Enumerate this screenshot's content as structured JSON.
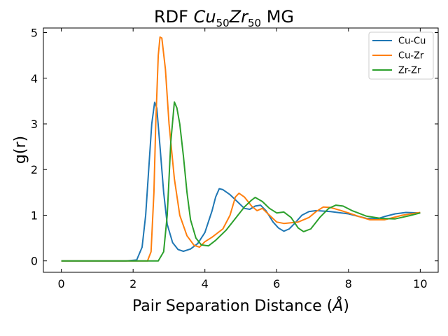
{
  "chart_data": {
    "type": "line",
    "title": {
      "prefix": "RDF ",
      "el1": "Cu",
      "sub1": "50",
      "el2": "Zr",
      "sub2": "50",
      "suffix": " MG"
    },
    "xlabel": {
      "text": "Pair Separation Distance (",
      "unit": "Å",
      "close": ")"
    },
    "ylabel": "g(r)",
    "xlim": [
      -0.5,
      10.5
    ],
    "ylim": [
      -0.25,
      5.1
    ],
    "xticks": [
      0,
      2,
      4,
      6,
      8,
      10
    ],
    "yticks": [
      0,
      1,
      2,
      3,
      4,
      5
    ],
    "grid": false,
    "legend_position": "top-right",
    "series": [
      {
        "name": "Cu-Cu",
        "color": "#1f77b4",
        "points": [
          [
            0,
            0
          ],
          [
            1.8,
            0
          ],
          [
            2.1,
            0.02
          ],
          [
            2.25,
            0.3
          ],
          [
            2.35,
            1.0
          ],
          [
            2.45,
            2.2
          ],
          [
            2.52,
            3.0
          ],
          [
            2.6,
            3.47
          ],
          [
            2.66,
            3.35
          ],
          [
            2.75,
            2.5
          ],
          [
            2.85,
            1.5
          ],
          [
            2.95,
            0.8
          ],
          [
            3.1,
            0.4
          ],
          [
            3.25,
            0.25
          ],
          [
            3.4,
            0.21
          ],
          [
            3.6,
            0.26
          ],
          [
            3.8,
            0.38
          ],
          [
            4.0,
            0.62
          ],
          [
            4.2,
            1.1
          ],
          [
            4.3,
            1.4
          ],
          [
            4.4,
            1.58
          ],
          [
            4.5,
            1.56
          ],
          [
            4.7,
            1.45
          ],
          [
            4.9,
            1.3
          ],
          [
            5.1,
            1.15
          ],
          [
            5.25,
            1.13
          ],
          [
            5.4,
            1.2
          ],
          [
            5.55,
            1.22
          ],
          [
            5.7,
            1.1
          ],
          [
            5.9,
            0.85
          ],
          [
            6.05,
            0.72
          ],
          [
            6.2,
            0.65
          ],
          [
            6.35,
            0.7
          ],
          [
            6.5,
            0.82
          ],
          [
            6.7,
            1.0
          ],
          [
            6.9,
            1.08
          ],
          [
            7.1,
            1.1
          ],
          [
            7.5,
            1.08
          ],
          [
            8.0,
            1.03
          ],
          [
            8.5,
            0.93
          ],
          [
            8.8,
            0.92
          ],
          [
            9.0,
            0.97
          ],
          [
            9.3,
            1.03
          ],
          [
            9.6,
            1.06
          ],
          [
            10,
            1.05
          ]
        ]
      },
      {
        "name": "Cu-Zr",
        "color": "#ff7f0e",
        "points": [
          [
            0,
            0
          ],
          [
            2.4,
            0
          ],
          [
            2.5,
            0.2
          ],
          [
            2.58,
            1.5
          ],
          [
            2.63,
            3.0
          ],
          [
            2.7,
            4.5
          ],
          [
            2.75,
            4.9
          ],
          [
            2.8,
            4.88
          ],
          [
            2.9,
            4.2
          ],
          [
            3.0,
            3.0
          ],
          [
            3.15,
            1.8
          ],
          [
            3.3,
            1.0
          ],
          [
            3.5,
            0.55
          ],
          [
            3.7,
            0.34
          ],
          [
            3.85,
            0.3
          ],
          [
            4.0,
            0.42
          ],
          [
            4.2,
            0.52
          ],
          [
            4.5,
            0.7
          ],
          [
            4.7,
            1.0
          ],
          [
            4.85,
            1.4
          ],
          [
            4.95,
            1.48
          ],
          [
            5.1,
            1.4
          ],
          [
            5.3,
            1.2
          ],
          [
            5.45,
            1.1
          ],
          [
            5.6,
            1.15
          ],
          [
            5.8,
            1.0
          ],
          [
            6.0,
            0.85
          ],
          [
            6.2,
            0.82
          ],
          [
            6.6,
            0.85
          ],
          [
            6.9,
            0.95
          ],
          [
            7.1,
            1.08
          ],
          [
            7.3,
            1.18
          ],
          [
            7.5,
            1.17
          ],
          [
            7.8,
            1.1
          ],
          [
            8.0,
            1.05
          ],
          [
            8.3,
            0.97
          ],
          [
            8.6,
            0.9
          ],
          [
            9.0,
            0.9
          ],
          [
            9.5,
            1.0
          ],
          [
            10,
            1.06
          ]
        ]
      },
      {
        "name": "Zr-Zr",
        "color": "#2ca02c",
        "points": [
          [
            0,
            0
          ],
          [
            2.7,
            0
          ],
          [
            2.85,
            0.2
          ],
          [
            2.95,
            1.0
          ],
          [
            3.05,
            2.6
          ],
          [
            3.15,
            3.48
          ],
          [
            3.22,
            3.35
          ],
          [
            3.3,
            3.0
          ],
          [
            3.4,
            2.3
          ],
          [
            3.5,
            1.5
          ],
          [
            3.6,
            0.9
          ],
          [
            3.75,
            0.5
          ],
          [
            3.9,
            0.35
          ],
          [
            4.1,
            0.33
          ],
          [
            4.3,
            0.45
          ],
          [
            4.6,
            0.68
          ],
          [
            4.9,
            0.98
          ],
          [
            5.1,
            1.18
          ],
          [
            5.3,
            1.33
          ],
          [
            5.4,
            1.39
          ],
          [
            5.6,
            1.3
          ],
          [
            5.8,
            1.15
          ],
          [
            6.0,
            1.05
          ],
          [
            6.2,
            1.07
          ],
          [
            6.4,
            0.95
          ],
          [
            6.6,
            0.72
          ],
          [
            6.75,
            0.64
          ],
          [
            6.95,
            0.7
          ],
          [
            7.2,
            0.95
          ],
          [
            7.45,
            1.15
          ],
          [
            7.65,
            1.22
          ],
          [
            7.85,
            1.2
          ],
          [
            8.1,
            1.1
          ],
          [
            8.5,
            0.98
          ],
          [
            8.9,
            0.93
          ],
          [
            9.3,
            0.92
          ],
          [
            9.7,
            0.99
          ],
          [
            10,
            1.05
          ]
        ]
      }
    ]
  }
}
